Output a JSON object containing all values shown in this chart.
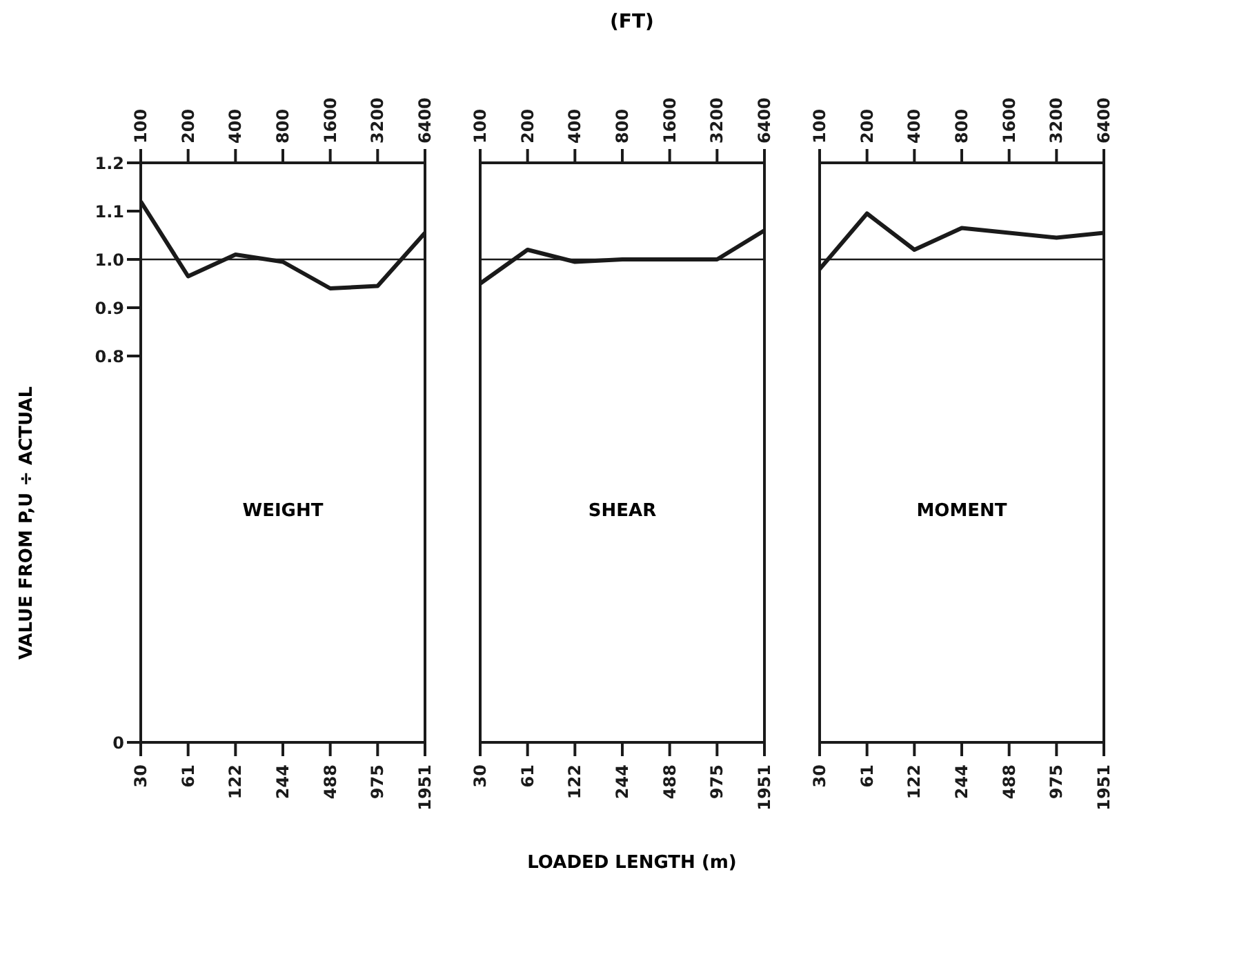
{
  "chart_data": [
    {
      "type": "line",
      "title": "WEIGHT",
      "ylabel": "VALUE FROM P,U ÷ ACTUAL",
      "categories": [
        "30",
        "61",
        "122",
        "244",
        "488",
        "975",
        "1951"
      ],
      "series": [
        {
          "color": "#1a1a1a",
          "values": [
            1.12,
            0.965,
            1.01,
            0.995,
            0.94,
            0.945,
            1.055
          ]
        }
      ],
      "annotations": [
        "100",
        "200",
        "400",
        "800",
        "1600",
        "3200",
        "6400"
      ],
      "ylim": [
        0,
        1.2
      ],
      "yticks": [
        0,
        0.8,
        0.9,
        {
          "value": 1,
          "label": "1.0"
        },
        1.1,
        1.2
      ],
      "ref_lines": [
        {
          "axis": "y",
          "value": 1,
          "color": "#1a1a1a"
        }
      ],
      "grid": false,
      "legend": false,
      "marker": "none"
    },
    {
      "type": "line",
      "title": "SHEAR",
      "xlabel": "LOADED LENGTH (m)",
      "x2label": "(FT)",
      "categories": [
        "30",
        "61",
        "122",
        "244",
        "488",
        "975",
        "1951"
      ],
      "series": [
        {
          "color": "#1a1a1a",
          "values": [
            0.95,
            1.02,
            0.995,
            1.0,
            1.0,
            1.0,
            1.06
          ]
        }
      ],
      "annotations": [
        "100",
        "200",
        "400",
        "800",
        "1600",
        "3200",
        "6400"
      ],
      "ylim": [
        0,
        1.2
      ],
      "tick_labels": "x",
      "ref_lines": [
        {
          "axis": "y",
          "value": 1,
          "color": "#1a1a1a"
        }
      ],
      "grid": false,
      "legend": false,
      "marker": "none"
    },
    {
      "type": "line",
      "title": "MOMENT",
      "categories": [
        "30",
        "61",
        "122",
        "244",
        "488",
        "975",
        "1951"
      ],
      "series": [
        {
          "color": "#1a1a1a",
          "values": [
            0.98,
            1.095,
            1.02,
            1.065,
            1.055,
            1.045,
            1.055
          ]
        }
      ],
      "annotations": [
        "100",
        "200",
        "400",
        "800",
        "1600",
        "3200",
        "6400"
      ],
      "ylim": [
        0,
        1.2
      ],
      "tick_labels": "x",
      "ref_lines": [
        {
          "axis": "y",
          "value": 1,
          "color": "#1a1a1a"
        }
      ],
      "grid": false,
      "legend": false,
      "marker": "none"
    }
  ]
}
